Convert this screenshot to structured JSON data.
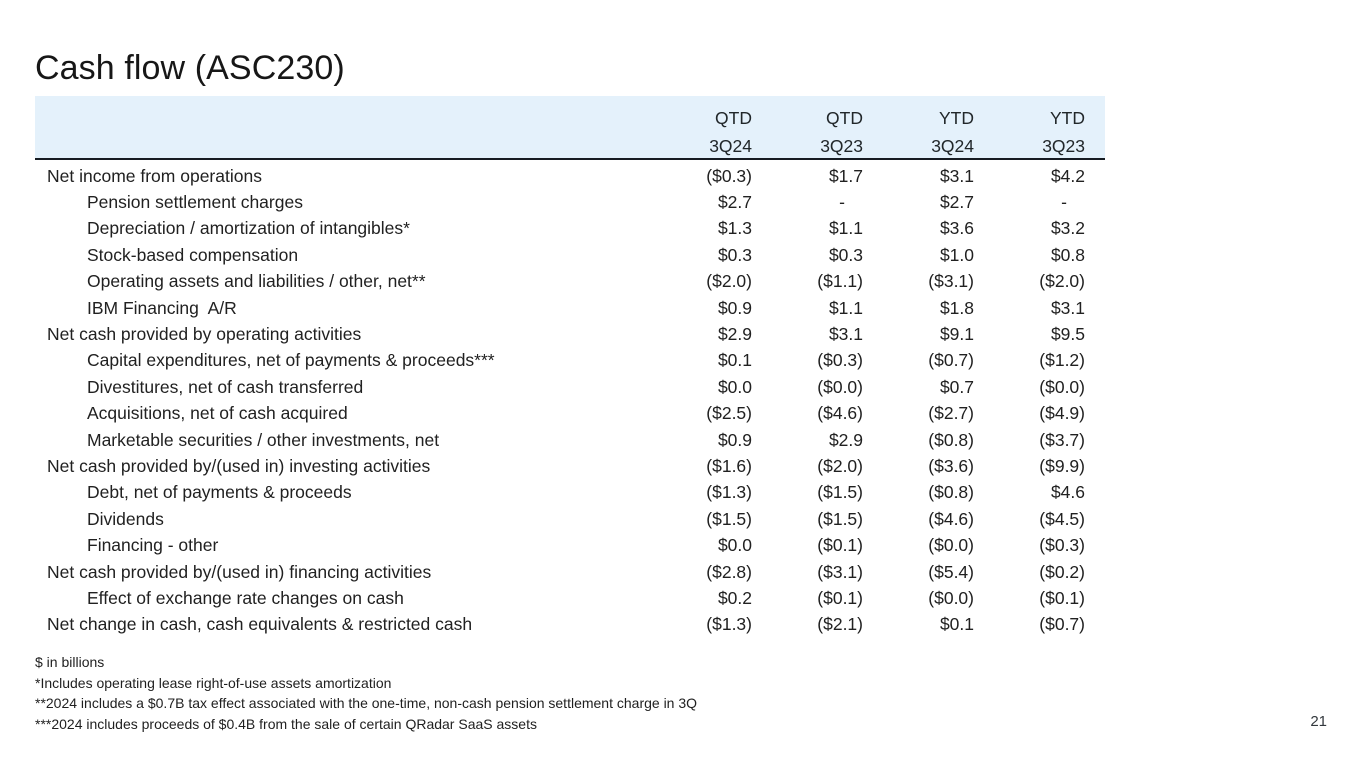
{
  "slide": {
    "title": "Cash flow (ASC230)",
    "page_number": "21"
  },
  "table": {
    "columns": [
      {
        "period": "QTD",
        "quarter": "3Q24"
      },
      {
        "period": "QTD",
        "quarter": "3Q23"
      },
      {
        "period": "YTD",
        "quarter": "3Q24"
      },
      {
        "period": "YTD",
        "quarter": "3Q23"
      }
    ],
    "rows": [
      {
        "label": "Net income from operations",
        "indent": false,
        "values": [
          "($0.3)",
          "$1.7",
          "$3.1",
          "$4.2"
        ]
      },
      {
        "label": "Pension settlement charges",
        "indent": true,
        "values": [
          "$2.7",
          "-",
          "$2.7",
          "-"
        ]
      },
      {
        "label": "Depreciation / amortization of intangibles*",
        "indent": true,
        "values": [
          "$1.3",
          "$1.1",
          "$3.6",
          "$3.2"
        ]
      },
      {
        "label": "Stock-based compensation",
        "indent": true,
        "values": [
          "$0.3",
          "$0.3",
          "$1.0",
          "$0.8"
        ]
      },
      {
        "label": "Operating assets and liabilities / other, net**",
        "indent": true,
        "values": [
          "($2.0)",
          "($1.1)",
          "($3.1)",
          "($2.0)"
        ]
      },
      {
        "label": "IBM Financing  A/R",
        "indent": true,
        "values": [
          "$0.9",
          "$1.1",
          "$1.8",
          "$3.1"
        ]
      },
      {
        "label": "Net cash provided by operating activities",
        "indent": false,
        "values": [
          "$2.9",
          "$3.1",
          "$9.1",
          "$9.5"
        ]
      },
      {
        "label": "Capital expenditures, net of payments & proceeds***",
        "indent": true,
        "values": [
          "$0.1",
          "($0.3)",
          "($0.7)",
          "($1.2)"
        ]
      },
      {
        "label": "Divestitures, net of cash transferred",
        "indent": true,
        "values": [
          "$0.0",
          "($0.0)",
          "$0.7",
          "($0.0)"
        ]
      },
      {
        "label": "Acquisitions, net of cash acquired",
        "indent": true,
        "values": [
          "($2.5)",
          "($4.6)",
          "($2.7)",
          "($4.9)"
        ]
      },
      {
        "label": "Marketable securities / other investments, net",
        "indent": true,
        "values": [
          "$0.9",
          "$2.9",
          "($0.8)",
          "($3.7)"
        ]
      },
      {
        "label": "Net cash provided by/(used in) investing activities",
        "indent": false,
        "values": [
          "($1.6)",
          "($2.0)",
          "($3.6)",
          "($9.9)"
        ]
      },
      {
        "label": "Debt, net of payments & proceeds",
        "indent": true,
        "values": [
          "($1.3)",
          "($1.5)",
          "($0.8)",
          "$4.6"
        ]
      },
      {
        "label": "Dividends",
        "indent": true,
        "values": [
          "($1.5)",
          "($1.5)",
          "($4.6)",
          "($4.5)"
        ]
      },
      {
        "label": "Financing - other",
        "indent": true,
        "values": [
          "$0.0",
          "($0.1)",
          "($0.0)",
          "($0.3)"
        ]
      },
      {
        "label": "Net cash provided by/(used in) financing activities",
        "indent": false,
        "values": [
          "($2.8)",
          "($3.1)",
          "($5.4)",
          "($0.2)"
        ]
      },
      {
        "label": "Effect of exchange rate changes on cash",
        "indent": true,
        "values": [
          "$0.2",
          "($0.1)",
          "($0.0)",
          "($0.1)"
        ]
      },
      {
        "label": "Net change in cash, cash equivalents & restricted cash",
        "indent": false,
        "values": [
          "($1.3)",
          "($2.1)",
          "$0.1",
          "($0.7)"
        ]
      }
    ]
  },
  "footnotes": [
    "$ in billions",
    "*Includes operating lease right-of-use assets amortization",
    "**2024 includes a $0.7B tax effect associated with the one-time, non-cash pension settlement charge in 3Q",
    "***2024 includes proceeds of $0.4B from the sale of certain QRadar SaaS assets"
  ],
  "colors": {
    "header_bg": "#e4f1fb",
    "rule": "#161b22",
    "text": "#212121"
  }
}
